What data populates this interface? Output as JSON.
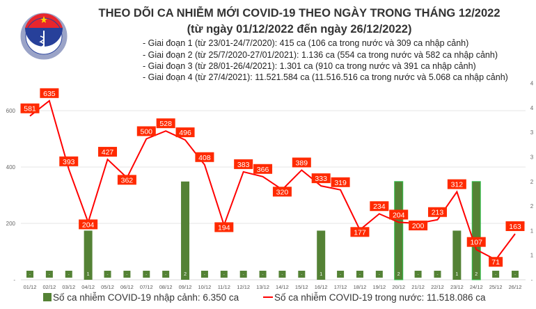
{
  "logo": {
    "text_top": "BỘ Y TẾ",
    "text_bottom": "MINISTRY OF HEALTH"
  },
  "chart_data": {
    "type": "bar+line",
    "title": "THEO DÕI CA NHIỄM MỚI COVID-19 THEO NGÀY TRONG THÁNG 12/2022",
    "subtitle": "(từ ngày 01/12/2022 đến ngày 26/12/2022)",
    "notes": [
      "- Giai đoạn 1 (từ 23/01-24/7/2020): 415 ca (106 ca trong nước và 309 ca nhập cảnh)",
      "- Giai đoạn 2 (từ 25/7/2020-27/01/2021): 1.136 ca (554 ca trong nước và 582 ca nhập cảnh)",
      "- Giai đoạn 3 (từ 28/01-26/4/2021): 1.301 ca (910 ca trong nước và 391 ca nhập cảnh)",
      "- Giai đoạn 4 (từ 27/4/2021): 11.521.584 ca (11.516.516 ca trong nước và 5.068 ca nhập cảnh)"
    ],
    "categories": [
      "01/12",
      "02/12",
      "03/12",
      "04/12",
      "05/12",
      "06/12",
      "07/12",
      "08/12",
      "09/12",
      "10/12",
      "11/12",
      "12/12",
      "13/12",
      "14/12",
      "15/12",
      "16/12",
      "17/12",
      "18/12",
      "19/12",
      "20/12",
      "21/12",
      "22/12",
      "23/12",
      "24/12",
      "25/12",
      "26/12"
    ],
    "series": [
      {
        "name": "Số ca nhiễm COVID-19 nhập cảnh: 6.350 ca",
        "type": "bar",
        "axis": "right",
        "color": "#548235",
        "values": [
          0,
          0,
          0,
          1,
          0,
          0,
          0,
          0,
          2,
          0,
          0,
          0,
          0,
          0,
          0,
          1,
          0,
          0,
          0,
          2,
          0,
          0,
          1,
          2,
          0,
          0
        ]
      },
      {
        "name": "Số ca nhiễm COVID-19 trong nước: 11.518.086 ca",
        "type": "line",
        "axis": "left",
        "color": "#ff0000",
        "values": [
          581,
          635,
          393,
          204,
          427,
          362,
          500,
          528,
          496,
          408,
          194,
          383,
          366,
          320,
          389,
          333,
          319,
          177,
          234,
          204,
          200,
          213,
          312,
          107,
          71,
          163
        ]
      }
    ],
    "left_axis": {
      "ylim": [
        0,
        700
      ],
      "ticks": [
        "-",
        "200",
        "400",
        "600"
      ]
    },
    "right_axis": {
      "ylim": [
        0,
        4.5
      ],
      "ticks": [
        "-",
        "1",
        "1",
        "2",
        "2",
        "3",
        "3",
        "4",
        "4"
      ]
    },
    "grid": true,
    "legend": "bottom",
    "label_bg": "#ff2a00"
  }
}
